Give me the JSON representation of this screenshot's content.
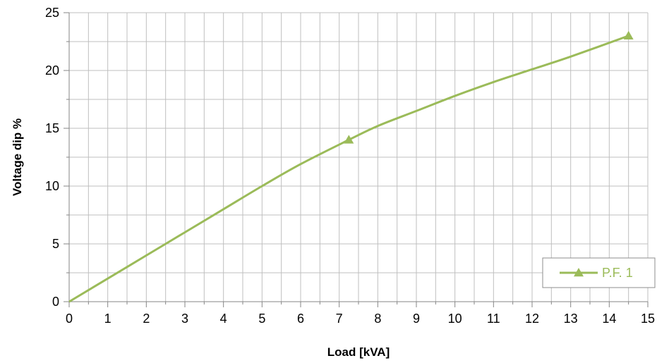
{
  "chart_data": {
    "type": "line",
    "title": "",
    "xlabel": "Load [kVA]",
    "ylabel": "Voltage dip %",
    "xlim": [
      0,
      15
    ],
    "ylim": [
      0,
      25
    ],
    "x_ticks": [
      0,
      1,
      2,
      3,
      4,
      5,
      6,
      7,
      8,
      9,
      10,
      11,
      12,
      13,
      14,
      15
    ],
    "y_ticks": [
      0,
      5,
      10,
      15,
      20,
      25
    ],
    "grid": true,
    "legend_position": "bottom-right",
    "series": [
      {
        "name": "P.F. 1",
        "color": "#9BBB59",
        "marker": "triangle",
        "smooth": true,
        "markers_x": [
          7.25,
          14.5
        ],
        "markers_y": [
          14,
          23
        ],
        "x": [
          0,
          1,
          2,
          3,
          4,
          5,
          6,
          7.25,
          8,
          9,
          10,
          11,
          12,
          13,
          14.5
        ],
        "y": [
          0,
          2.0,
          4.0,
          6.0,
          8.0,
          10.0,
          11.9,
          14.0,
          15.2,
          16.5,
          17.8,
          19.0,
          20.1,
          21.2,
          23.0
        ]
      }
    ]
  }
}
